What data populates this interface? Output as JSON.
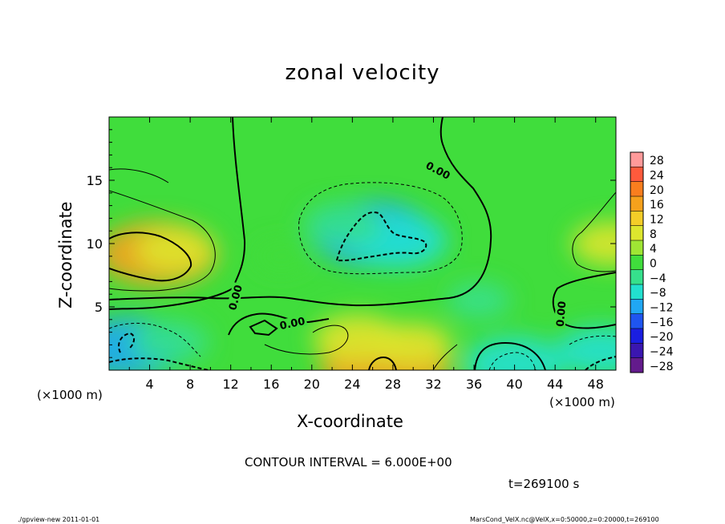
{
  "chart_data": {
    "type": "heatmap",
    "title": "zonal velocity",
    "xlabel": "X-coordinate",
    "ylabel": "Z-coordinate",
    "x_unit_label": "(×1000 m)",
    "xlim": [
      0,
      50
    ],
    "ylim": [
      0,
      20
    ],
    "x_ticks": [
      4,
      8,
      12,
      16,
      20,
      24,
      28,
      32,
      36,
      40,
      44,
      48
    ],
    "x_tick_labels": [
      "4",
      "8",
      "12",
      "16",
      "20",
      "24",
      "28",
      "32",
      "36",
      "40",
      "44",
      "48"
    ],
    "y_ticks": [
      5,
      10,
      15
    ],
    "y_tick_labels": [
      "5",
      "10",
      "15"
    ],
    "colorbar": {
      "levels": [
        28,
        24,
        20,
        16,
        12,
        8,
        4,
        0,
        -4,
        -8,
        -12,
        -16,
        -20,
        -24,
        -28
      ],
      "labels": [
        "28",
        "24",
        "20",
        "16",
        "12",
        "8",
        "4",
        "0",
        "−4",
        "−8",
        "−12",
        "−16",
        "−20",
        "−24",
        "−28"
      ],
      "colors": [
        "#ff9a9a",
        "#ff5a3c",
        "#f97e1e",
        "#f6a11c",
        "#f4cd28",
        "#dde62e",
        "#9fe534",
        "#40dd3c",
        "#36e08c",
        "#22e0cf",
        "#20a7f4",
        "#1f55f0",
        "#1a1ee0",
        "#3a16b0",
        "#631b8c"
      ]
    },
    "anomalies": [
      {
        "x": 4.8,
        "z": 9.2,
        "value": 14
      },
      {
        "x": 6.5,
        "z": 9.5,
        "value": 6
      },
      {
        "x": 26.0,
        "z": 10.8,
        "value": -14
      },
      {
        "x": 28.5,
        "z": 10.2,
        "value": -10
      },
      {
        "x": 23.0,
        "z": 11.5,
        "value": -6
      },
      {
        "x": 2.0,
        "z": 1.8,
        "value": -12
      },
      {
        "x": 6.0,
        "z": 2.2,
        "value": -6
      },
      {
        "x": 27.2,
        "z": 0.3,
        "value": 16
      },
      {
        "x": 24.5,
        "z": 2.5,
        "value": 8
      },
      {
        "x": 30.0,
        "z": 2.0,
        "value": 6
      },
      {
        "x": 40.0,
        "z": 0.5,
        "value": -10
      },
      {
        "x": 48.5,
        "z": 1.5,
        "value": -8
      },
      {
        "x": 49.5,
        "z": 10.0,
        "value": 6
      },
      {
        "x": 17.0,
        "z": 9.0,
        "value": -1
      },
      {
        "x": 36.5,
        "z": 5.5,
        "value": -3
      }
    ],
    "contour_labels": [
      "0.00",
      "0.00",
      "0.00",
      "0.00"
    ],
    "contour_interval": "CONTOUR INTERVAL = 6.000E+00",
    "time": "t=269100 s"
  },
  "footer": {
    "left": "./gpview-new   2011-01-01",
    "right": "MarsCond_VelX.nc@VelX,x=0:50000,z=0:20000,t=269100"
  }
}
